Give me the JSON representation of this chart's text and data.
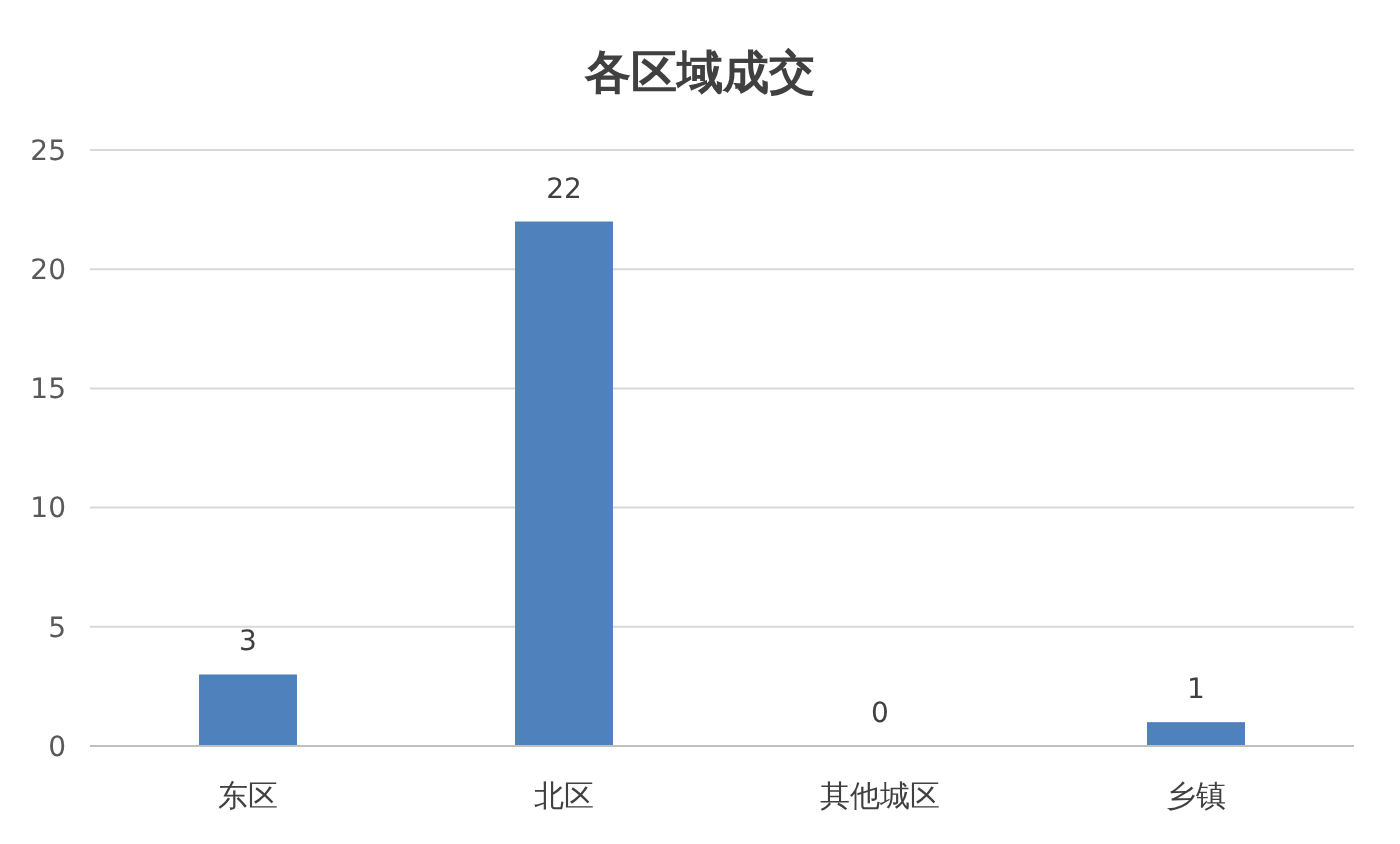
{
  "chart_data": {
    "type": "bar",
    "title": "各区域成交",
    "categories": [
      "东区",
      "北区",
      "其他城区",
      "乡镇"
    ],
    "values": [
      3,
      22,
      0,
      1
    ],
    "color": "#4f81bd",
    "ylim": [
      0,
      25
    ],
    "yticks": [
      0,
      5,
      10,
      15,
      20,
      25
    ],
    "grid": "y",
    "data_labels": true
  }
}
